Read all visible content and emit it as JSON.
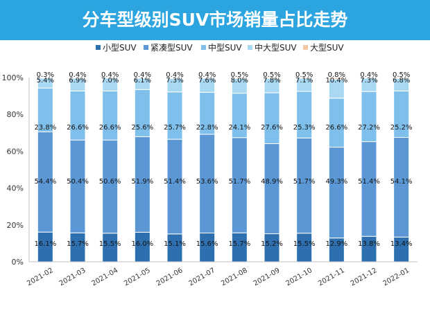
{
  "title": "分车型级别SUV市场销量占比走势",
  "chart_data": {
    "type": "bar",
    "stacked": true,
    "percent": true,
    "title": "分车型级别SUV市场销量占比走势",
    "categories": [
      "2021-02",
      "2021-03",
      "2021-04",
      "2021-05",
      "2021-06",
      "2021-07",
      "2021-08",
      "2021-09",
      "2021-10",
      "2021-11",
      "2021-12",
      "2022-01"
    ],
    "series": [
      {
        "name": "小型SUV",
        "color": "#2e6fb0",
        "values": [
          16.1,
          15.7,
          15.5,
          16.0,
          15.1,
          15.6,
          15.7,
          15.2,
          15.5,
          12.9,
          13.8,
          13.4
        ],
        "labels": [
          "16.1%",
          "15.7%",
          "15.5%",
          "16.0%",
          "15.1%",
          "15.6%",
          "15.7%",
          "15.2%",
          "15.5%",
          "12.9%",
          "13.8%",
          "13.4%"
        ]
      },
      {
        "name": "紧凑型SUV",
        "color": "#5b97d5",
        "values": [
          54.4,
          50.4,
          50.6,
          51.9,
          51.4,
          53.6,
          51.7,
          48.9,
          51.7,
          49.3,
          51.4,
          54.1
        ],
        "labels": [
          "54.4%",
          "50.4%",
          "50.6%",
          "51.9%",
          "51.4%",
          "53.6%",
          "51.7%",
          "48.9%",
          "51.7%",
          "49.3%",
          "51.4%",
          "54.1%"
        ]
      },
      {
        "name": "中型SUV",
        "color": "#7ec0eb",
        "values": [
          23.8,
          26.6,
          26.6,
          25.6,
          25.7,
          22.8,
          24.1,
          27.6,
          25.3,
          26.6,
          27.2,
          25.2
        ],
        "labels": [
          "23.8%",
          "26.6%",
          "26.6%",
          "25.6%",
          "25.7%",
          "22.8%",
          "24.1%",
          "27.6%",
          "25.3%",
          "26.6%",
          "27.2%",
          "25.2%"
        ]
      },
      {
        "name": "中大型SUV",
        "color": "#a9d9f2",
        "values": [
          5.4,
          6.9,
          7.0,
          6.1,
          7.3,
          7.6,
          8.0,
          7.8,
          7.1,
          10.4,
          7.3,
          6.8
        ],
        "labels": [
          "5.4%",
          "6.9%",
          "7.0%",
          "6.1%",
          "7.3%",
          "7.6%",
          "8.0%",
          "7.8%",
          "7.1%",
          "10.4%",
          "7.3%",
          "6.8%"
        ]
      },
      {
        "name": "大型SUV",
        "color": "#f2c9a6",
        "values": [
          0.3,
          0.4,
          0.4,
          0.4,
          0.4,
          0.4,
          0.5,
          0.5,
          0.5,
          0.8,
          0.4,
          0.5
        ],
        "labels": [
          "0.3%",
          "0.4%",
          "0.4%",
          "0.4%",
          "0.4%",
          "0.4%",
          "0.5%",
          "0.5%",
          "0.5%",
          "0.8%",
          "0.4%",
          "0.5%"
        ]
      }
    ],
    "ylim": [
      0,
      100
    ],
    "yticks": [
      "0%",
      "20%",
      "40%",
      "60%",
      "80%",
      "100%"
    ],
    "legend": "top",
    "grid": false
  }
}
